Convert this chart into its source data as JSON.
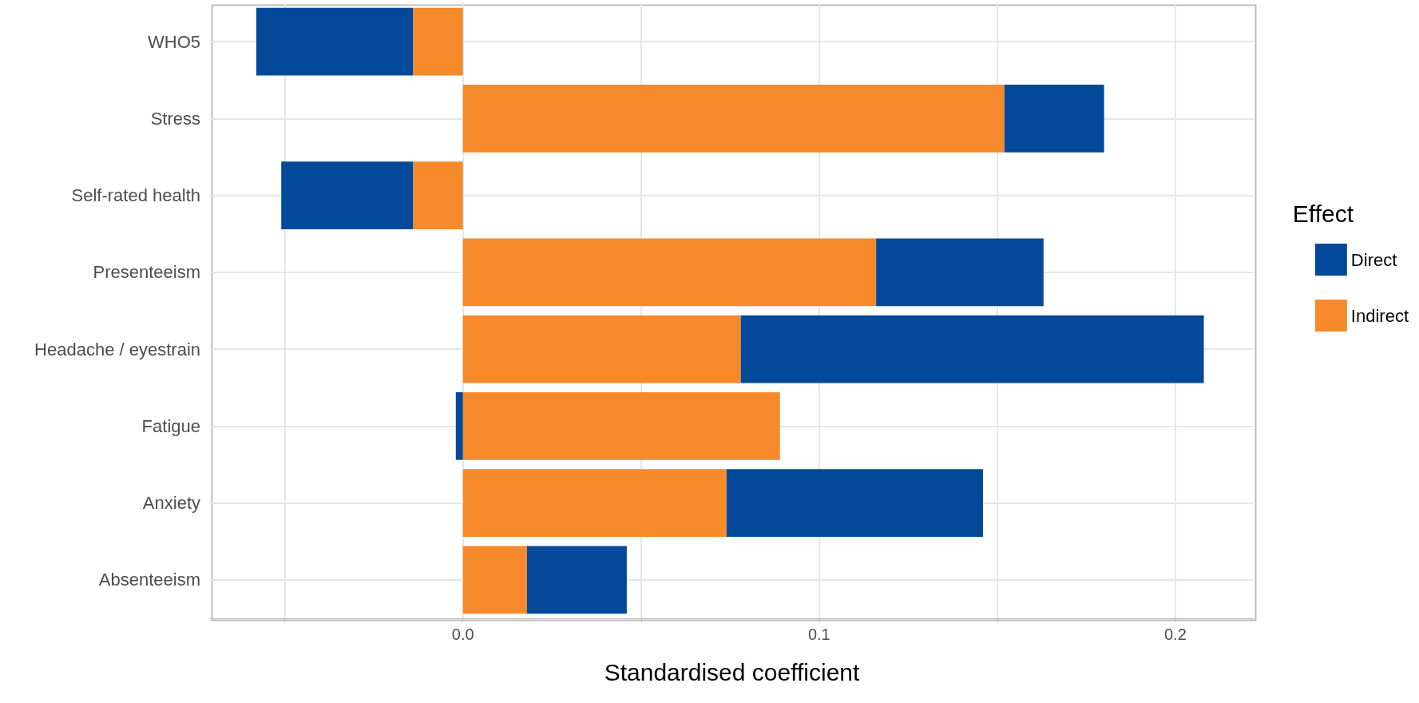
{
  "chart_data": {
    "type": "bar",
    "orientation": "horizontal",
    "stacked": true,
    "xlabel": "Standardised coefficient",
    "legend_title": "Effect",
    "categories": [
      "WHO5",
      "Stress",
      "Self-rated health",
      "Presenteeism",
      "Headache / eyestrain",
      "Fatigue",
      "Anxiety",
      "Absenteeism"
    ],
    "series": [
      {
        "name": "Indirect",
        "color": "#f68a2a",
        "values": [
          -0.014,
          0.152,
          -0.014,
          0.116,
          0.078,
          0.089,
          0.074,
          0.018
        ]
      },
      {
        "name": "Direct",
        "color": "#03499a",
        "values": [
          -0.044,
          0.028,
          -0.037,
          0.047,
          0.13,
          -0.002,
          0.072,
          0.028
        ]
      }
    ],
    "xlim": [
      -0.071,
      0.222
    ],
    "xticks": [
      {
        "value": -0.05,
        "label": null
      },
      {
        "value": 0,
        "label": "0.0"
      },
      {
        "value": 0.05,
        "label": null
      },
      {
        "value": 0.1,
        "label": "0.1"
      },
      {
        "value": 0.15,
        "label": null
      },
      {
        "value": 0.2,
        "label": "0.2"
      }
    ],
    "grid": true,
    "legend": "right"
  }
}
